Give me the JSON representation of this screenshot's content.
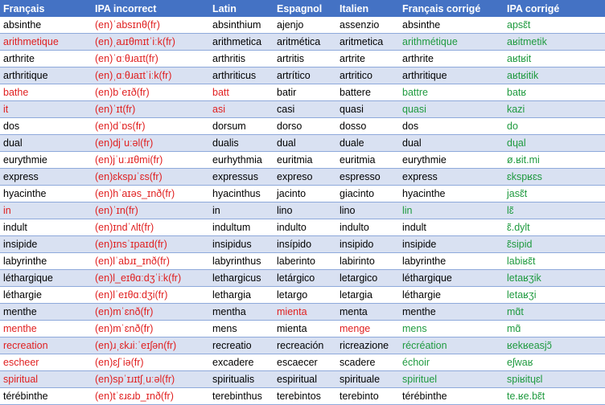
{
  "colors": {
    "header_bg": "#4472c4",
    "band_bg": "#d9e1f2",
    "red_text": "#e02020",
    "green_text": "#1f9a3f",
    "border": "#8ea9db"
  },
  "headers": [
    "Français",
    "IPA incorrect",
    "Latin",
    "Espagnol",
    "Italien",
    "Français corrigé",
    "IPA corrigé"
  ],
  "rows": [
    {
      "cells": [
        "absinthe",
        "(en)ˈabsɪnθ(fr)",
        "absinthium",
        "ajenjo",
        "assenzio",
        "absinthe",
        "apsɛ̃t"
      ],
      "colors": [
        "",
        "red",
        "",
        "",
        "",
        "",
        "green"
      ]
    },
    {
      "cells": [
        "arithmetique",
        "(en)ˌaɹɪθmɪtˈiːk(fr)",
        "arithmetica",
        "aritmética",
        "aritmetica",
        "arithmétique",
        "aʁitmetik"
      ],
      "colors": [
        "red",
        "red",
        "",
        "",
        "",
        "green",
        "green"
      ]
    },
    {
      "cells": [
        "arthrite",
        "(en)ˈɑːθɹaɪt(fr)",
        "arthritis",
        "artritis",
        "artrite",
        "arthrite",
        "aʁtʁit"
      ],
      "colors": [
        "",
        "red",
        "",
        "",
        "",
        "",
        "green"
      ]
    },
    {
      "cells": [
        "arthritique",
        "(en)ˌɑːθɹaɪtˈiːk(fr)",
        "arthriticus",
        "artrítico",
        "artritico",
        "arthritique",
        "aʁtʁitik"
      ],
      "colors": [
        "",
        "red",
        "",
        "",
        "",
        "",
        "green"
      ]
    },
    {
      "cells": [
        "bathe",
        "(en)bˈeɪð(fr)",
        "batt",
        "batir",
        "battere",
        "battre",
        "batʁ"
      ],
      "colors": [
        "red",
        "red",
        "red",
        "",
        "",
        "green",
        "green"
      ]
    },
    {
      "cells": [
        "it",
        "(en)ˈɪt(fr)",
        "asi",
        "casi",
        "quasi",
        "quasi",
        "kazi"
      ],
      "colors": [
        "red",
        "red",
        "red",
        "",
        "",
        "green",
        "green"
      ]
    },
    {
      "cells": [
        "dos",
        "(en)dˈɒs(fr)",
        "dorsum",
        "dorso",
        "dosso",
        "dos",
        "do"
      ],
      "colors": [
        "",
        "red",
        "",
        "",
        "",
        "",
        "green"
      ]
    },
    {
      "cells": [
        "dual",
        "(en)djˈuːəl(fr)",
        "dualis",
        "dual",
        "duale",
        "dual",
        "dɥal"
      ],
      "colors": [
        "",
        "red",
        "",
        "",
        "",
        "",
        "green"
      ]
    },
    {
      "cells": [
        "eurythmie",
        "(en)jˈuːɹɪθmi(fr)",
        "eurhythmia",
        "euritmia",
        "euritmia",
        "eurythmie",
        "ø.ʁit.mi"
      ],
      "colors": [
        "",
        "red",
        "",
        "",
        "",
        "",
        "green"
      ]
    },
    {
      "cells": [
        "express",
        "(en)ɛkspɹˈɛs(fr)",
        "expressus",
        "expreso",
        "espresso",
        "express",
        "ɛkspʁɛs"
      ],
      "colors": [
        "",
        "red",
        "",
        "",
        "",
        "",
        "green"
      ]
    },
    {
      "cells": [
        "hyacinthe",
        "(en)hˈaɪəs_ɪnð(fr)",
        "hyacinthus",
        "jacinto",
        "giacinto",
        "hyacinthe",
        "jasɛ̃t"
      ],
      "colors": [
        "",
        "red",
        "",
        "",
        "",
        "",
        "green"
      ]
    },
    {
      "cells": [
        "in",
        "(en)ˈɪn(fr)",
        "in",
        "lino",
        "lino",
        "lin",
        "lɛ̃"
      ],
      "colors": [
        "red",
        "red",
        "",
        "",
        "",
        "green",
        "green"
      ]
    },
    {
      "cells": [
        "indult",
        "(en)ɪndˈʌlt(fr)",
        "indultum",
        "indulto",
        "indulto",
        "indult",
        "ɛ̃.dylt"
      ],
      "colors": [
        "",
        "red",
        "",
        "",
        "",
        "",
        "green"
      ]
    },
    {
      "cells": [
        "insipide",
        "(en)ɪnsˈɪpaɪd(fr)",
        "insipidus",
        "insípido",
        "insipido",
        "insipide",
        "ɛ̃sipid"
      ],
      "colors": [
        "",
        "red",
        "",
        "",
        "",
        "",
        "green"
      ]
    },
    {
      "cells": [
        "labyrinthe",
        "(en)lˈabɹɪ_ɪnð(fr)",
        "labyrinthus",
        "laberinto",
        "labirinto",
        "labyrinthe",
        "labiʁɛ̃t"
      ],
      "colors": [
        "",
        "red",
        "",
        "",
        "",
        "",
        "green"
      ]
    },
    {
      "cells": [
        "léthargique",
        "(en)l_eɪθɑːdʒˈiːk(fr)",
        "lethargicus",
        "letárgico",
        "letargico",
        "léthargique",
        "letaʁʒik"
      ],
      "colors": [
        "",
        "red",
        "",
        "",
        "",
        "",
        "green"
      ]
    },
    {
      "cells": [
        "léthargie",
        "(en)lˈeɪθɑːdʒi(fr)",
        "lethargia",
        "letargo",
        "letargia",
        "léthargie",
        "letaʁʒi"
      ],
      "colors": [
        "",
        "red",
        "",
        "",
        "",
        "",
        "green"
      ]
    },
    {
      "cells": [
        "menthe",
        "(en)mˈɛnð(fr)",
        "mentha",
        "mienta",
        "menta",
        "menthe",
        "mɑ̃t"
      ],
      "colors": [
        "",
        "red",
        "",
        "red",
        "",
        "",
        "green"
      ]
    },
    {
      "cells": [
        "menthe",
        "(en)mˈɛnð(fr)",
        "mens",
        "mienta",
        "menge",
        "mens",
        "mɑ̃"
      ],
      "colors": [
        "red",
        "red",
        "",
        "",
        "red",
        "green",
        "green"
      ]
    },
    {
      "cells": [
        "recreation",
        "(en)ɹˌɛkɹiːˈeɪʃən(fr)",
        "recreatio",
        "recreación",
        "ricreazione",
        "récréation",
        "ʁekʁeasjɔ̃"
      ],
      "colors": [
        "red",
        "red",
        "",
        "",
        "",
        "green",
        "green"
      ]
    },
    {
      "cells": [
        "escheer",
        "(en)ɛʃˈiə(fr)",
        "excadere",
        "escaecer",
        "scadere",
        "échoir",
        "eʃwaʁ"
      ],
      "colors": [
        "red",
        "red",
        "",
        "",
        "",
        "green",
        "green"
      ]
    },
    {
      "cells": [
        "spiritual",
        "(en)spˈɪɹɪtʃˌuːəl(fr)",
        "spiritualis",
        "espiritual",
        "spirituale",
        "spirituel",
        "spiʁitɥɛl"
      ],
      "colors": [
        "red",
        "red",
        "",
        "",
        "",
        "green",
        "green"
      ]
    },
    {
      "cells": [
        "térébinthe",
        "(en)tˈɛɹɛɹb_ɪnð(fr)",
        "terebinthus",
        "terebintos",
        "terebinto",
        "térébinthe",
        "te.ʁe.bɛ̃t"
      ],
      "colors": [
        "",
        "red",
        "",
        "",
        "",
        "",
        "green"
      ]
    }
  ]
}
